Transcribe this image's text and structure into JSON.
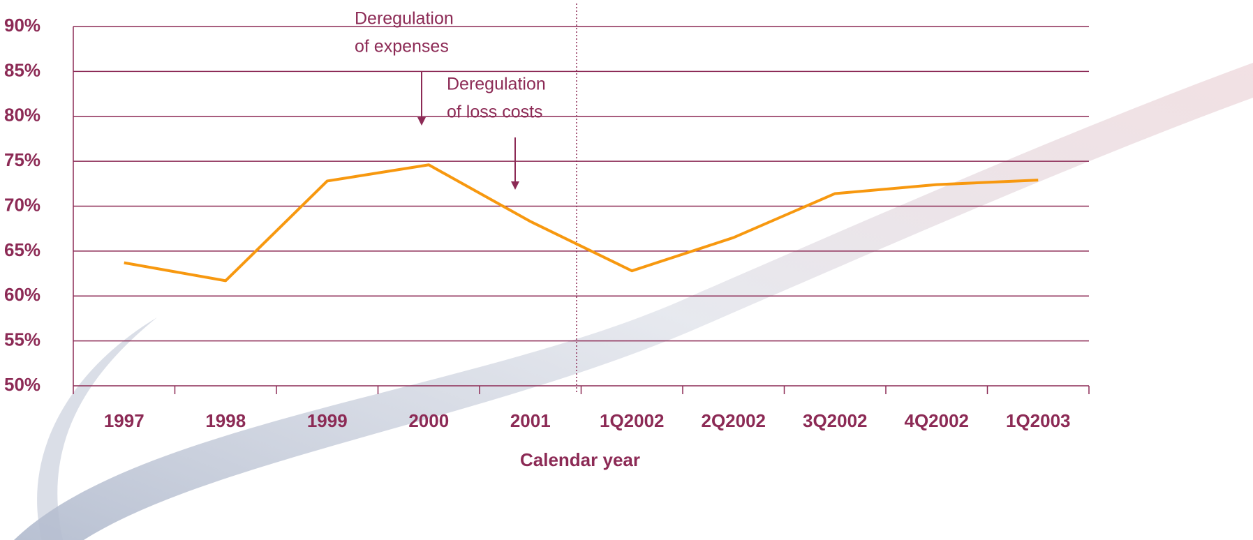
{
  "chart_data": {
    "type": "line",
    "x_label": "Calendar year",
    "categories": [
      "1997",
      "1998",
      "1999",
      "2000",
      "2001",
      "1Q2002",
      "2Q2002",
      "3Q2002",
      "4Q2002",
      "1Q2003"
    ],
    "series": [
      {
        "color": "#f7980f",
        "values": [
          63.7,
          61.7,
          72.8,
          74.6,
          68.3,
          62.8,
          66.5,
          71.4,
          72.4,
          72.9
        ]
      }
    ],
    "ylim": [
      50,
      90
    ],
    "yticks": [
      {
        "value": 50,
        "label": "50%"
      },
      {
        "value": 55,
        "label": "55%"
      },
      {
        "value": 60,
        "label": "60%"
      },
      {
        "value": 65,
        "label": "65%"
      },
      {
        "value": 70,
        "label": "70%"
      },
      {
        "value": 75,
        "label": "75%"
      },
      {
        "value": 80,
        "label": "80%"
      },
      {
        "value": 85,
        "label": "85%"
      },
      {
        "value": 90,
        "label": "90%"
      }
    ],
    "grid": true,
    "annotations": [
      {
        "lines": [
          "Deregulation",
          "of expenses"
        ]
      },
      {
        "lines": [
          "Deregulation",
          "of loss costs"
        ]
      }
    ]
  }
}
